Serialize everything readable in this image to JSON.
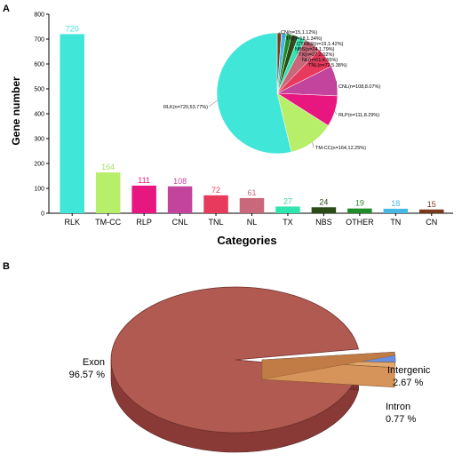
{
  "panels": {
    "a_label": "A",
    "b_label": "B"
  },
  "chart_data": [
    {
      "type": "bar",
      "panel": "A",
      "xlabel": "Categories",
      "ylabel": "Gene number",
      "ylim": [
        0,
        800
      ],
      "yticks": [
        0,
        100,
        200,
        300,
        400,
        500,
        600,
        700,
        800
      ],
      "categories": [
        "RLK",
        "TM-CC",
        "RLP",
        "CNL",
        "TNL",
        "NL",
        "TX",
        "NBS",
        "OTHER",
        "TN",
        "CN"
      ],
      "values": [
        720,
        164,
        111,
        108,
        72,
        61,
        27,
        24,
        19,
        18,
        15
      ],
      "value_labels": [
        "720",
        "164",
        "111",
        "108",
        "72",
        "61",
        "27",
        "24",
        "19",
        "18",
        "15"
      ],
      "colors": [
        "#40e6d8",
        "#b7ee6a",
        "#e8177f",
        "#c2449c",
        "#e83a5c",
        "#c8687a",
        "#2fe6b0",
        "#2a4a18",
        "#1f8c2a",
        "#46b8e6",
        "#7a3a1a"
      ],
      "label_colors": [
        "#40e6d8",
        "#a8e05a",
        "#e8177f",
        "#c2449c",
        "#e83a5c",
        "#c8687a",
        "#2fd6b0",
        "#2a4a18",
        "#1f8c2a",
        "#46b8e6",
        "#7a3a1a"
      ],
      "grid": false
    },
    {
      "type": "pie",
      "panel": "A-inset",
      "slices": [
        {
          "name": "RLK",
          "value": 53.77,
          "label": "RLK(n=720,53.77%)",
          "color": "#40e6d8"
        },
        {
          "name": "TM-CC",
          "value": 12.25,
          "label": "TM-CC(n=164,12.25%)",
          "color": "#b7ee6a"
        },
        {
          "name": "RLP",
          "value": 8.29,
          "label": "RLP(n=111,8.29%)",
          "color": "#e8177f"
        },
        {
          "name": "CNL",
          "value": 8.07,
          "label": "CNL(n=108,8.07%)",
          "color": "#c2449c"
        },
        {
          "name": "TNL",
          "value": 5.38,
          "label": "TNL(n=72,5.38%)",
          "color": "#e83a5c"
        },
        {
          "name": "NL",
          "value": 4.55,
          "label": "NL(n=61,4.55%)",
          "color": "#c8687a"
        },
        {
          "name": "TX",
          "value": 2.02,
          "label": "TX(n=27,2.02%)",
          "color": "#2fe6b0"
        },
        {
          "name": "NBS",
          "value": 1.79,
          "label": "NBS(n=24,1.79%)",
          "color": "#2a4a18"
        },
        {
          "name": "OTHER",
          "value": 1.42,
          "label": "OTHER(n=19,1.42%)",
          "color": "#1f8c2a"
        },
        {
          "name": "TN",
          "value": 1.34,
          "label": "TN(n=18,1.34%)",
          "color": "#46b8e6"
        },
        {
          "name": "CN",
          "value": 1.12,
          "label": "CN(n=15,1.12%)",
          "color": "#7a3a1a"
        }
      ]
    },
    {
      "type": "pie",
      "panel": "B",
      "style": "3d-exploded",
      "slices": [
        {
          "name": "Exon",
          "value": 96.57,
          "label_name": "Exon",
          "label_value": "96.57 %",
          "color": "#b05a52"
        },
        {
          "name": "Intergenic",
          "value": 2.67,
          "label_name": "Intergenic",
          "label_value": "2.67 %",
          "color": "#6a8fe0"
        },
        {
          "name": "Intron",
          "value": 0.77,
          "label_name": "Intron",
          "label_value": "0.77 %",
          "color": "#d6935a"
        }
      ]
    }
  ]
}
